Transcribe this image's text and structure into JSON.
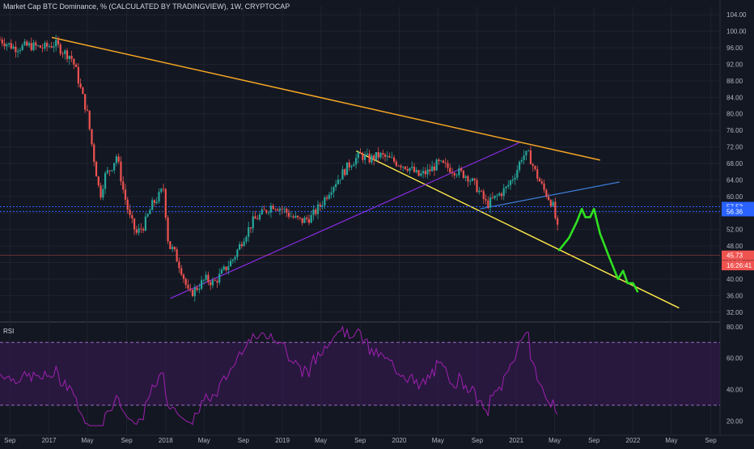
{
  "header": {
    "title": "Market Cap BTC Dominance, % (CALCULATED BY TRADINGVIEW), 1W, CRYPTOCAP"
  },
  "rsi": {
    "label": "RSI"
  },
  "colors": {
    "background": "#131722",
    "grid": "#1f2330",
    "candle_up": "#26a69a",
    "candle_down": "#ef5350",
    "trend_top": "#f5a623",
    "trend_bottom": "#ffe94a",
    "trend_support": "#8a2be2",
    "trend_blue": "#3d7fd9",
    "projection": "#2fe021",
    "rsi_line": "#a020b0",
    "rsi_band": "#3a1a55",
    "price_badge_blue": "#2962ff",
    "price_badge_red": "#ef5350"
  },
  "chart_data": [
    {
      "type": "candlestick",
      "x_ticks": [
        "Sep",
        "2017",
        "May",
        "Sep",
        "2018",
        "May",
        "Sep",
        "2019",
        "May",
        "Sep",
        "2020",
        "May",
        "Sep",
        "2021",
        "May",
        "Sep",
        "2022",
        "May",
        "Sep"
      ],
      "y_ticks": [
        32,
        36,
        40,
        44,
        48,
        52,
        56,
        60,
        64,
        68,
        72,
        76,
        80,
        84,
        88,
        92,
        96,
        100,
        104
      ],
      "y_tick_labels": [
        "32.00",
        "36.00",
        "40.00",
        "44.00",
        "48.00",
        "52.00",
        "56.00",
        "60.00",
        "64.00",
        "68.00",
        "72.00",
        "76.00",
        "80.00",
        "84.00",
        "88.00",
        "92.00",
        "96.00",
        "100.00",
        "104.00"
      ],
      "ylim": [
        30,
        106
      ],
      "price_labels": [
        {
          "text": "57.52",
          "value": 57.52,
          "color": "#2962ff"
        },
        {
          "text": "56.36",
          "value": 56.36,
          "color": "#2962ff"
        },
        {
          "text": "45.73",
          "value": 45.73,
          "color": "#ef5350"
        },
        {
          "text": "16:26:41",
          "value": 43.3,
          "color": "#ef5350"
        }
      ],
      "series": {
        "x": [
          "2016-08-01",
          "2016-09-15",
          "2016-11-01",
          "2016-12-15",
          "2017-01-20",
          "2017-02-15",
          "2017-03-10",
          "2017-03-25",
          "2017-04-10",
          "2017-05-01",
          "2017-05-20",
          "2017-06-10",
          "2017-06-25",
          "2017-07-15",
          "2017-08-01",
          "2017-08-20",
          "2017-09-10",
          "2017-10-01",
          "2017-10-25",
          "2017-11-20",
          "2017-12-10",
          "2017-12-25",
          "2018-01-10",
          "2018-01-25",
          "2018-02-20",
          "2018-03-15",
          "2018-04-10",
          "2018-05-05",
          "2018-06-01",
          "2018-07-01",
          "2018-08-01",
          "2018-09-01",
          "2018-10-01",
          "2018-11-01",
          "2018-12-01",
          "2019-01-01",
          "2019-02-01",
          "2019-03-01",
          "2019-04-01",
          "2019-05-01",
          "2019-06-01",
          "2019-07-01",
          "2019-08-01",
          "2019-09-01",
          "2019-10-01",
          "2019-11-01",
          "2019-12-01",
          "2020-01-01",
          "2020-02-01",
          "2020-03-01",
          "2020-04-01",
          "2020-05-01",
          "2020-06-01",
          "2020-07-01",
          "2020-08-01",
          "2020-09-01",
          "2020-10-01",
          "2020-11-01",
          "2020-12-01",
          "2021-01-01",
          "2021-01-20",
          "2021-02-10",
          "2021-03-01",
          "2021-03-25",
          "2021-04-10",
          "2021-04-25",
          "2021-05-10",
          "2021-05-15"
        ],
        "close": [
          98,
          96,
          96.5,
          96,
          97,
          95,
          94,
          91,
          86,
          80,
          70,
          60,
          65,
          67,
          70,
          62,
          55,
          51,
          53,
          58,
          60,
          62,
          48,
          47,
          42,
          36,
          38,
          40,
          39,
          42,
          45,
          50,
          54,
          56,
          58,
          57,
          55,
          54,
          55,
          58,
          62,
          65,
          68,
          70,
          69,
          70,
          69,
          68,
          67,
          65,
          66,
          68,
          67,
          66,
          65,
          62,
          58,
          60,
          62,
          66,
          70,
          70,
          66,
          62,
          60,
          58,
          52,
          45.73
        ]
      }
    },
    {
      "type": "line",
      "name": "RSI",
      "y_ticks": [
        20,
        40,
        60,
        80
      ],
      "y_tick_labels": [
        "20.00",
        "40.00",
        "60.00",
        "80.00"
      ],
      "ylim": [
        15,
        82
      ],
      "bands": [
        30,
        70
      ]
    }
  ]
}
